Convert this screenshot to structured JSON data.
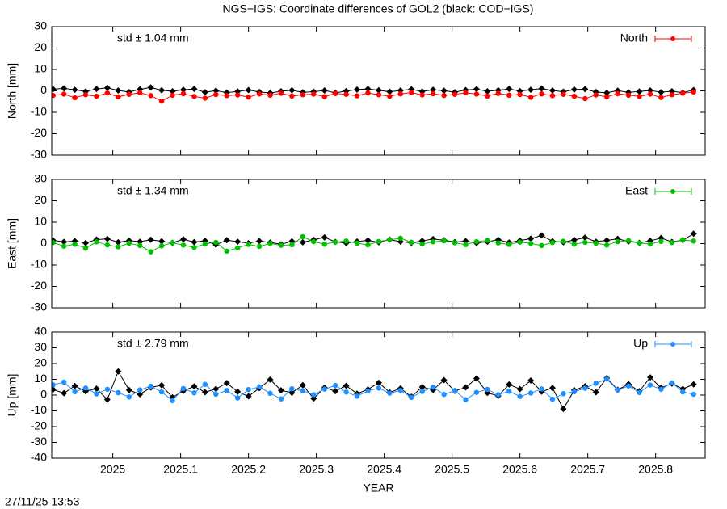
{
  "title": "NGS−IGS: Coordinate differences of GOL2 (black: COD−IGS)",
  "timestamp": "27/11/25 13:53",
  "chart_data": [
    {
      "type": "line",
      "ylabel": "North [mm]",
      "annotation": "std ± 1.04 mm",
      "legend": "upper right",
      "x": [
        2024.912,
        2024.928,
        2024.944,
        2024.96,
        2024.976,
        2024.992,
        2025.008,
        2025.024,
        2025.04,
        2025.056,
        2025.072,
        2025.088,
        2025.104,
        2025.12,
        2025.136,
        2025.152,
        2025.168,
        2025.184,
        2025.2,
        2025.216,
        2025.232,
        2025.248,
        2025.264,
        2025.28,
        2025.296,
        2025.312,
        2025.328,
        2025.344,
        2025.36,
        2025.376,
        2025.392,
        2025.408,
        2025.424,
        2025.44,
        2025.456,
        2025.472,
        2025.488,
        2025.504,
        2025.52,
        2025.536,
        2025.552,
        2025.568,
        2025.584,
        2025.6,
        2025.616,
        2025.632,
        2025.648,
        2025.664,
        2025.68,
        2025.696,
        2025.712,
        2025.728,
        2025.744,
        2025.76,
        2025.776,
        2025.792,
        2025.808,
        2025.824,
        2025.84,
        2025.856
      ],
      "xlim": [
        2024.91,
        2025.873
      ],
      "xticks": [
        2025,
        2025.1,
        2025.2,
        2025.3,
        2025.4,
        2025.5,
        2025.6,
        2025.7,
        2025.8
      ],
      "ylim": [
        -30,
        30
      ],
      "yticks": [
        -30,
        -20,
        -10,
        0,
        10,
        20,
        30
      ],
      "series": [
        {
          "color": "#000000",
          "values": [
            0.8,
            1.2,
            0.5,
            -0.3,
            0.9,
            1.4,
            0.2,
            -0.5,
            0.7,
            1.6,
            0.3,
            -0.2,
            0.5,
            0.9,
            -0.6,
            0.1,
            -0.8,
            -0.3,
            0.4,
            -0.5,
            -1.0,
            -0.2,
            0.3,
            -0.7,
            -0.4,
            0.2,
            -0.9,
            -0.1,
            0.6,
            0.9,
            0.3,
            -0.4,
            0.2,
            0.7,
            -0.3,
            0.5,
            0.1,
            -0.6,
            0.4,
            0.8,
            -0.2,
            0.3,
            0.9,
            -0.1,
            0.5,
            1.1,
            0.2,
            -0.4,
            0.6,
            0.8,
            -0.5,
            -0.9,
            0.1,
            -0.7,
            -0.3,
            0.2,
            -0.6,
            -0.2,
            -0.8,
            0.4
          ]
        },
        {
          "name": "North",
          "color": "#ff0000",
          "values": [
            -2.1,
            -1.5,
            -3.2,
            -1.8,
            -2.5,
            -1.0,
            -2.8,
            -1.6,
            -0.9,
            -2.2,
            -4.8,
            -2.0,
            -1.3,
            -2.6,
            -3.4,
            -1.7,
            -2.2,
            -1.9,
            -2.9,
            -1.4,
            -2.0,
            -1.1,
            -2.4,
            -1.8,
            -1.5,
            -2.7,
            -1.2,
            -1.6,
            -2.3,
            -1.0,
            -1.8,
            -2.5,
            -1.4,
            -0.8,
            -1.9,
            -1.3,
            -2.1,
            -1.6,
            -0.9,
            -1.5,
            -2.4,
            -1.2,
            -2.0,
            -1.7,
            -3.0,
            -1.4,
            -2.2,
            -1.6,
            -2.5,
            -3.6,
            -1.9,
            -2.8,
            -1.3,
            -2.0,
            -2.6,
            -1.5,
            -3.1,
            -1.8,
            -1.1,
            -0.5
          ]
        }
      ]
    },
    {
      "type": "line",
      "ylabel": "East [mm]",
      "annotation": "std ± 1.34 mm",
      "legend": "upper right",
      "x": [
        2024.912,
        2024.928,
        2024.944,
        2024.96,
        2024.976,
        2024.992,
        2025.008,
        2025.024,
        2025.04,
        2025.056,
        2025.072,
        2025.088,
        2025.104,
        2025.12,
        2025.136,
        2025.152,
        2025.168,
        2025.184,
        2025.2,
        2025.216,
        2025.232,
        2025.248,
        2025.264,
        2025.28,
        2025.296,
        2025.312,
        2025.328,
        2025.344,
        2025.36,
        2025.376,
        2025.392,
        2025.408,
        2025.424,
        2025.44,
        2025.456,
        2025.472,
        2025.488,
        2025.504,
        2025.52,
        2025.536,
        2025.552,
        2025.568,
        2025.584,
        2025.6,
        2025.616,
        2025.632,
        2025.648,
        2025.664,
        2025.68,
        2025.696,
        2025.712,
        2025.728,
        2025.744,
        2025.76,
        2025.776,
        2025.792,
        2025.808,
        2025.824,
        2025.84,
        2025.856
      ],
      "xlim": [
        2024.91,
        2025.873
      ],
      "xticks": [
        2025,
        2025.1,
        2025.2,
        2025.3,
        2025.4,
        2025.5,
        2025.6,
        2025.7,
        2025.8
      ],
      "ylim": [
        -30,
        30
      ],
      "yticks": [
        -30,
        -20,
        -10,
        0,
        10,
        20,
        30
      ],
      "series": [
        {
          "color": "#000000",
          "values": [
            1.5,
            0.8,
            1.2,
            0.3,
            1.9,
            2.2,
            0.6,
            1.4,
            0.9,
            1.8,
            1.1,
            0.4,
            2.0,
            0.7,
            1.3,
            -0.5,
            1.6,
            0.9,
            0.2,
            1.2,
            0.5,
            -0.3,
            1.1,
            0.6,
            1.8,
            2.9,
            0.8,
            0.3,
            1.0,
            1.5,
            0.6,
            1.9,
            0.9,
            0.4,
            1.3,
            2.1,
            1.6,
            0.7,
            1.2,
            0.3,
            0.9,
            1.8,
            0.5,
            1.4,
            2.3,
            3.8,
            1.1,
            0.6,
            1.7,
            2.8,
            0.9,
            1.5,
            2.2,
            1.0,
            0.4,
            1.3,
            2.6,
            0.8,
            1.6,
            4.6
          ]
        },
        {
          "name": "East",
          "color": "#00c000",
          "values": [
            0.5,
            -1.2,
            -0.3,
            -2.1,
            0.8,
            -0.6,
            -1.5,
            0.2,
            -0.9,
            -3.8,
            -1.1,
            0.4,
            -0.7,
            -1.8,
            -0.2,
            0.6,
            -3.5,
            -2.0,
            -0.4,
            -1.3,
            0.1,
            -0.8,
            -0.5,
            3.2,
            0.9,
            -0.3,
            0.7,
            1.2,
            0.2,
            -0.6,
            1.0,
            1.8,
            2.5,
            0.6,
            -0.2,
            0.8,
            1.3,
            0.4,
            -0.5,
            0.9,
            1.5,
            0.3,
            -0.4,
            0.7,
            0.1,
            -0.9,
            0.5,
            1.1,
            -0.3,
            0.6,
            0.2,
            -0.7,
            0.9,
            1.4,
            0.3,
            -0.2,
            1.0,
            0.5,
            1.7,
            1.2
          ]
        }
      ]
    },
    {
      "type": "line",
      "ylabel": "Up [mm]",
      "xlabel": "YEAR",
      "annotation": "std ± 2.79 mm",
      "legend": "upper right",
      "x": [
        2024.912,
        2024.928,
        2024.944,
        2024.96,
        2024.976,
        2024.992,
        2025.008,
        2025.024,
        2025.04,
        2025.056,
        2025.072,
        2025.088,
        2025.104,
        2025.12,
        2025.136,
        2025.152,
        2025.168,
        2025.184,
        2025.2,
        2025.216,
        2025.232,
        2025.248,
        2025.264,
        2025.28,
        2025.296,
        2025.312,
        2025.328,
        2025.344,
        2025.36,
        2025.376,
        2025.392,
        2025.408,
        2025.424,
        2025.44,
        2025.456,
        2025.472,
        2025.488,
        2025.504,
        2025.52,
        2025.536,
        2025.552,
        2025.568,
        2025.584,
        2025.6,
        2025.616,
        2025.632,
        2025.648,
        2025.664,
        2025.68,
        2025.696,
        2025.712,
        2025.728,
        2025.744,
        2025.76,
        2025.776,
        2025.792,
        2025.808,
        2025.824,
        2025.84,
        2025.856
      ],
      "xlim": [
        2024.91,
        2025.873
      ],
      "xticks": [
        2025,
        2025.1,
        2025.2,
        2025.3,
        2025.4,
        2025.5,
        2025.6,
        2025.7,
        2025.8
      ],
      "ylim": [
        -40,
        40
      ],
      "yticks": [
        -40,
        -30,
        -20,
        -10,
        0,
        10,
        20,
        30,
        40
      ],
      "series": [
        {
          "color": "#000000",
          "values": [
            3.5,
            1.2,
            5.8,
            2.4,
            4.1,
            -2.8,
            15.0,
            3.2,
            0.5,
            4.8,
            6.2,
            -1.5,
            2.7,
            5.5,
            1.8,
            3.9,
            7.6,
            2.1,
            -0.8,
            4.4,
            9.8,
            3.0,
            1.5,
            6.3,
            -2.2,
            4.7,
            2.5,
            5.9,
            0.9,
            3.6,
            7.8,
            1.7,
            4.2,
            -1.0,
            5.1,
            3.3,
            9.5,
            2.6,
            4.9,
            10.5,
            1.4,
            -0.5,
            6.7,
            3.8,
            9.2,
            2.2,
            4.5,
            -8.8,
            3.1,
            5.6,
            1.8,
            10.8,
            3.4,
            6.9,
            2.5,
            11.2,
            4.6,
            7.3,
            3.9,
            6.8
          ]
        },
        {
          "name": "Up",
          "color": "#1e90ff",
          "values": [
            6.5,
            8.2,
            2.1,
            4.5,
            0.8,
            3.7,
            1.5,
            -1.2,
            3.3,
            5.6,
            2.0,
            -3.5,
            4.2,
            1.4,
            6.8,
            0.6,
            2.9,
            -1.8,
            3.5,
            5.2,
            1.1,
            -2.4,
            4.0,
            2.7,
            0.3,
            3.8,
            6.1,
            1.9,
            -0.7,
            2.6,
            4.4,
            1.2,
            3.0,
            -1.5,
            2.3,
            5.0,
            0.4,
            2.8,
            -2.9,
            1.7,
            3.6,
            0.2,
            2.4,
            -0.9,
            1.3,
            3.9,
            -2.6,
            0.9,
            2.1,
            4.3,
            7.5,
            10.2,
            3.2,
            5.8,
            1.6,
            6.4,
            3.7,
            7.8,
            2.0,
            0.5
          ]
        }
      ]
    }
  ]
}
